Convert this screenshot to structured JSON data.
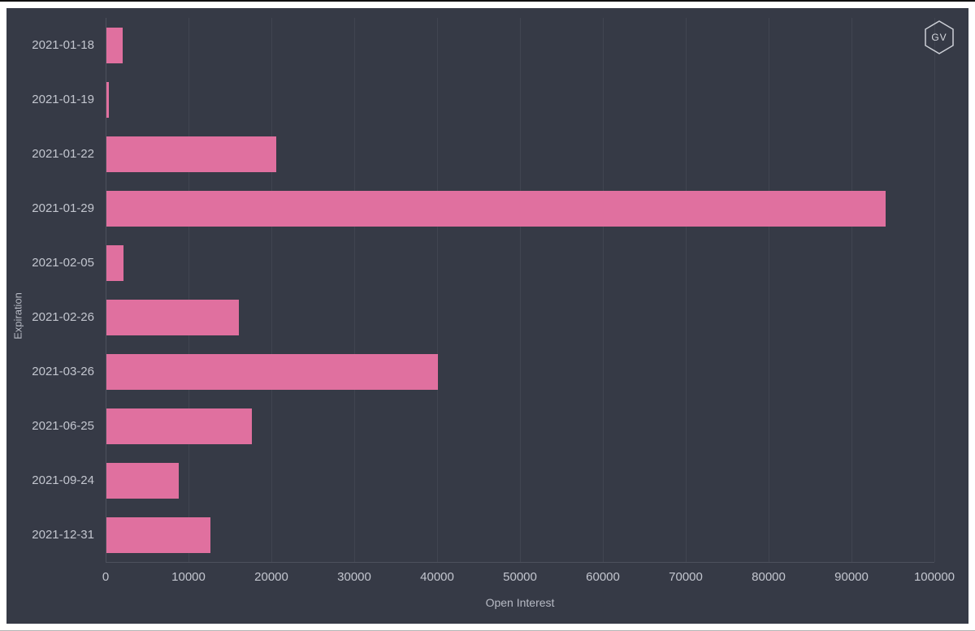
{
  "logo": {
    "text": "GV"
  },
  "colors": {
    "background": "#363a46",
    "bar": "#e0709f",
    "grid": "#414551",
    "axis_line": "#4d515d",
    "tick_text": "#c3c6cf",
    "axis_title_text": "#b7bac4",
    "logo_stroke": "#cdd0d7"
  },
  "chart_data": {
    "type": "bar",
    "orientation": "horizontal",
    "title": "",
    "xlabel": "Open Interest",
    "ylabel": "Expiration",
    "categories": [
      "2021-01-18",
      "2021-01-19",
      "2021-01-22",
      "2021-01-29",
      "2021-02-05",
      "2021-02-26",
      "2021-03-26",
      "2021-06-25",
      "2021-09-24",
      "2021-12-31"
    ],
    "values": [
      2000,
      300,
      20500,
      94000,
      2100,
      16000,
      40000,
      17500,
      8700,
      12500
    ],
    "xlim": [
      0,
      100000
    ],
    "xticks": [
      0,
      10000,
      20000,
      30000,
      40000,
      50000,
      60000,
      70000,
      80000,
      90000,
      100000
    ],
    "grid": "vertical",
    "legend": "none"
  }
}
